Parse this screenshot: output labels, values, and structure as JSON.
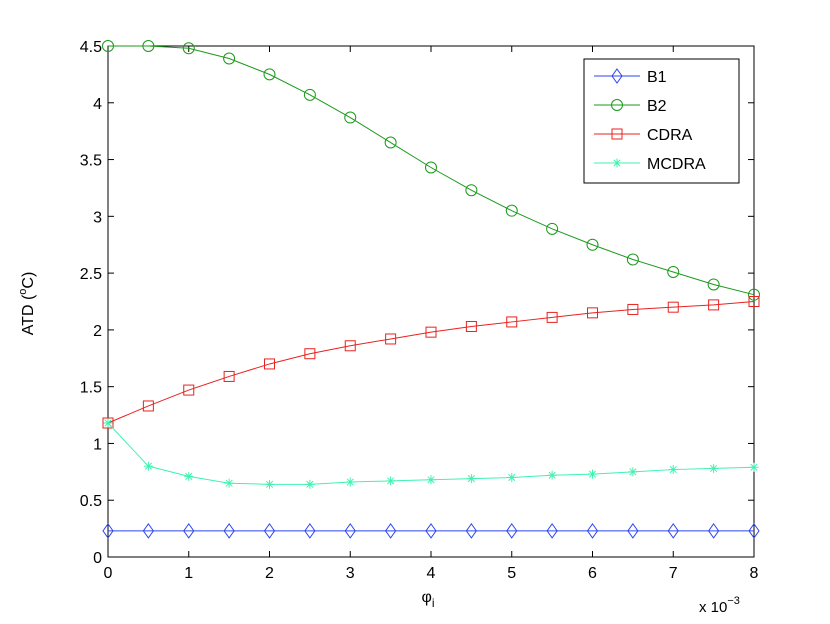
{
  "chart_data": {
    "type": "line",
    "title": "",
    "xlabel": "φ",
    "xlabel_sub": "i",
    "ylabel": "ATD (",
    "ylabel_sup": "o",
    "ylabel_unit": "C)",
    "x_multiplier": "x 10",
    "x_multiplier_exp": "−3",
    "xlim": [
      0,
      8
    ],
    "ylim": [
      0,
      4.5
    ],
    "xticks": [
      "0",
      "1",
      "2",
      "3",
      "4",
      "5",
      "6",
      "7",
      "8"
    ],
    "yticks": [
      "0",
      "0.5",
      "1",
      "1.5",
      "2",
      "2.5",
      "3",
      "3.5",
      "4",
      "4.5"
    ],
    "grid": false,
    "legend_position": "top-right",
    "x": [
      0,
      0.5,
      1,
      1.5,
      2,
      2.5,
      3,
      3.5,
      4,
      4.5,
      5,
      5.5,
      6,
      6.5,
      7,
      7.5,
      8
    ],
    "series": [
      {
        "name": "B1",
        "color": "#2b44f0",
        "marker": "diamond",
        "values": [
          0.23,
          0.23,
          0.23,
          0.23,
          0.23,
          0.23,
          0.23,
          0.23,
          0.23,
          0.23,
          0.23,
          0.23,
          0.23,
          0.23,
          0.23,
          0.23,
          0.23
        ]
      },
      {
        "name": "B2",
        "color": "#1a9a1a",
        "marker": "circle",
        "values": [
          4.5,
          4.5,
          4.48,
          4.39,
          4.25,
          4.07,
          3.87,
          3.65,
          3.43,
          3.23,
          3.05,
          2.89,
          2.75,
          2.62,
          2.51,
          2.4,
          2.31
        ]
      },
      {
        "name": "CDRA",
        "color": "#e8221f",
        "marker": "square",
        "values": [
          1.18,
          1.33,
          1.47,
          1.59,
          1.7,
          1.79,
          1.86,
          1.92,
          1.98,
          2.03,
          2.07,
          2.11,
          2.15,
          2.18,
          2.2,
          2.22,
          2.25
        ]
      },
      {
        "name": "MCDRA",
        "color": "#3ff2b0",
        "marker": "star",
        "values": [
          1.18,
          0.8,
          0.71,
          0.65,
          0.64,
          0.64,
          0.66,
          0.67,
          0.68,
          0.69,
          0.7,
          0.72,
          0.73,
          0.75,
          0.77,
          0.78,
          0.79
        ]
      }
    ]
  }
}
